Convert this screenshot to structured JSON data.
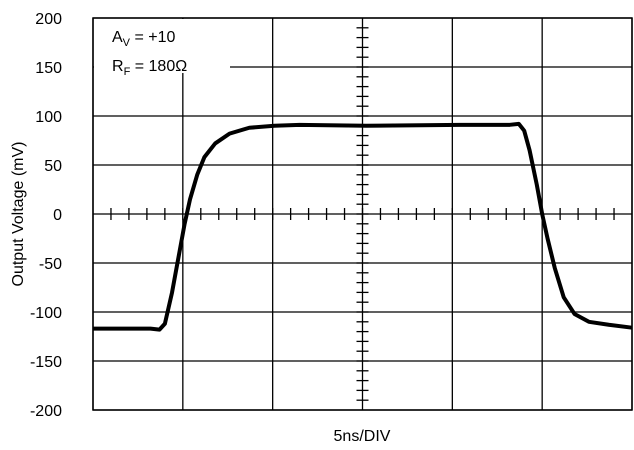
{
  "chart_data": {
    "type": "line",
    "x_label": "5ns/DIV",
    "y_label": "Output Voltage (mV)",
    "annotations": [
      [
        "A",
        "V",
        " = +10"
      ],
      [
        "R",
        "F",
        " = 180Ω"
      ]
    ],
    "x": [
      0,
      3.2,
      3.7,
      4.0,
      4.4,
      4.8,
      5.1,
      5.4,
      5.8,
      6.2,
      6.8,
      7.6,
      8.7,
      10.1,
      11.5,
      15.2,
      20.4,
      23.2,
      23.7,
      24.0,
      24.3,
      24.7,
      25.0,
      25.3,
      25.7,
      26.2,
      26.8,
      27.6,
      28.7,
      30
    ],
    "series": [
      {
        "name": "Output",
        "color": "#000000",
        "values": [
          -117,
          -117,
          -118,
          -112,
          -80,
          -40,
          -10,
          15,
          40,
          58,
          72,
          82,
          88,
          90,
          91,
          90,
          91,
          91,
          92,
          85,
          65,
          30,
          0,
          -25,
          -55,
          -85,
          -102,
          -110,
          -113,
          -116
        ]
      }
    ],
    "xlim": [
      0,
      30
    ],
    "xticks": [
      0,
      5,
      10,
      15,
      20,
      25,
      30
    ],
    "ylim": [
      -200,
      200
    ],
    "yticks": [
      -200,
      -150,
      -100,
      -50,
      0,
      50,
      100,
      150,
      200
    ],
    "grid": true
  }
}
